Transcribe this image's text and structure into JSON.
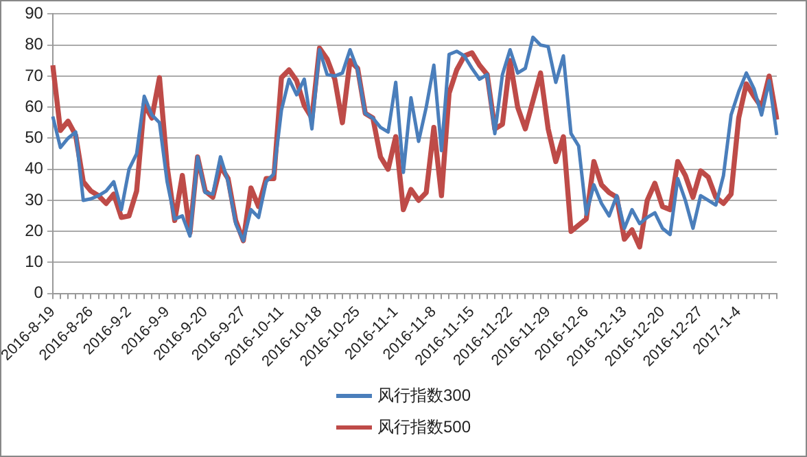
{
  "chart_data": {
    "type": "line",
    "categories": [
      "2016-8-19",
      null,
      null,
      null,
      null,
      "2016-8-26",
      null,
      null,
      null,
      null,
      "2016-9-2",
      null,
      null,
      null,
      null,
      "2016-9-9",
      null,
      null,
      null,
      null,
      "2016-9-20",
      null,
      null,
      null,
      null,
      "2016-9-27",
      null,
      null,
      null,
      null,
      "2016-10-11",
      null,
      null,
      null,
      null,
      "2016-10-18",
      null,
      null,
      null,
      null,
      "2016-10-25",
      null,
      null,
      null,
      null,
      "2016-11-1",
      null,
      null,
      null,
      null,
      "2016-11-8",
      null,
      null,
      null,
      null,
      "2016-11-15",
      null,
      null,
      null,
      null,
      "2016-11-22",
      null,
      null,
      null,
      null,
      "2016-11-29",
      null,
      null,
      null,
      null,
      "2016-12-6",
      null,
      null,
      null,
      null,
      "2016-12-13",
      null,
      null,
      null,
      null,
      "2016-12-20",
      null,
      null,
      null,
      null,
      "2016-12-27",
      null,
      null,
      null,
      null,
      "2017-1-4",
      null,
      null,
      null,
      null,
      null
    ],
    "series": [
      {
        "name": "风行指数300",
        "color": "#4a7ebb",
        "values": [
          57,
          47,
          50,
          52,
          30,
          30.5,
          31.5,
          33,
          36,
          27,
          40,
          45,
          63.5,
          57.5,
          55,
          36,
          24,
          25,
          18.5,
          44,
          32.5,
          32,
          44,
          36,
          22.5,
          17,
          27,
          24.5,
          36,
          38.5,
          59,
          69,
          64,
          69,
          53,
          78.5,
          70.5,
          70,
          71,
          78.5,
          72,
          58,
          56.5,
          53.5,
          52,
          68,
          39,
          63,
          49,
          60,
          73.5,
          46,
          77,
          78,
          76.5,
          72.5,
          69,
          70.5,
          51.5,
          70.5,
          78.5,
          71,
          72.5,
          82.5,
          80,
          79.5,
          68,
          76.5,
          51.5,
          47.5,
          25.5,
          35,
          29,
          25,
          31.5,
          21,
          27,
          22.5,
          24.5,
          26,
          21,
          19,
          37,
          30,
          21,
          31.5,
          30,
          28.5,
          38,
          57.5,
          65,
          71,
          66,
          57.5,
          68.5,
          51
        ]
      },
      {
        "name": "风行指数500",
        "color": "#be4b48",
        "values": [
          73.5,
          52.5,
          55.5,
          51,
          36,
          33,
          31.5,
          29,
          32,
          24.5,
          25,
          33,
          61,
          56.5,
          69.5,
          41,
          23.5,
          38,
          19.5,
          44,
          33,
          31,
          41,
          37,
          23.5,
          17,
          34,
          28,
          37,
          37,
          69.5,
          72,
          68.5,
          60.5,
          56.5,
          79,
          75.5,
          69,
          55,
          75,
          72.5,
          58,
          56.5,
          44,
          40,
          50.5,
          27,
          33.5,
          30,
          32.5,
          53.5,
          31.5,
          64.5,
          72,
          76.5,
          77.5,
          73.5,
          70.5,
          53,
          54.5,
          75,
          60,
          53,
          62,
          71,
          53,
          42.5,
          50.5,
          20,
          22,
          24,
          42.5,
          35,
          32.5,
          31,
          17.5,
          20.5,
          15,
          30,
          35.5,
          28,
          27,
          42.5,
          38,
          31,
          39.5,
          37.5,
          31,
          29,
          32,
          56.5,
          67.5,
          63.5,
          60,
          70,
          56
        ]
      }
    ],
    "ylim": [
      0,
      90
    ],
    "yticks": [
      0,
      10,
      20,
      30,
      40,
      50,
      60,
      70,
      80,
      90
    ],
    "grid": "y",
    "legend": "bottom",
    "marker": "none",
    "line_style": "solid"
  }
}
